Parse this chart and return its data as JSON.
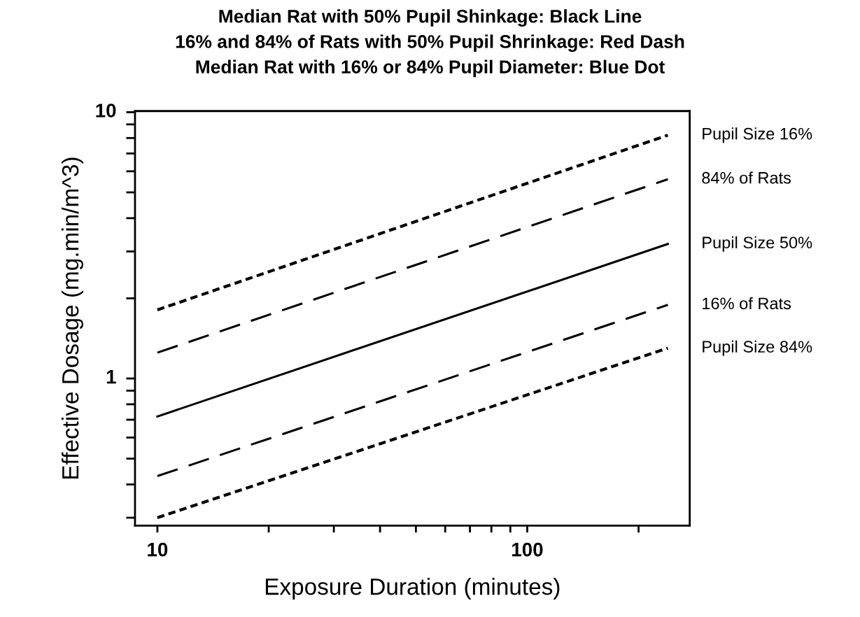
{
  "chart_data": {
    "type": "line",
    "title": "Median Rat with 50% Pupil Shinkage: Black Line\n16% and 84% of Rats with 50% Pupil Shrinkage: Red Dash\nMedian Rat with 16% or 84% Pupil Diameter: Blue Dot",
    "xlabel": "Exposure Duration (minutes)",
    "ylabel": "Effective Dosage (mg.min/m^3)",
    "log": "xy",
    "grid": false,
    "legend": false,
    "marker": "none",
    "x": [
      10,
      240
    ],
    "series": [
      {
        "name": "Pupil Size 16%",
        "color": "#000000",
        "line_style": "dotted",
        "values": [
          1.81,
          8.2
        ]
      },
      {
        "name": "84% of Rats",
        "color": "#000000",
        "line_style": "dashed",
        "values": [
          1.25,
          5.6
        ]
      },
      {
        "name": "Pupil Size 50%",
        "color": "#000000",
        "line_style": "solid",
        "values": [
          0.72,
          3.2
        ]
      },
      {
        "name": "16% of Rats",
        "color": "#000000",
        "line_style": "dashed",
        "values": [
          0.43,
          1.89
        ]
      },
      {
        "name": "Pupil Size 84%",
        "color": "#000000",
        "line_style": "dotted",
        "values": [
          0.3,
          1.3
        ]
      }
    ],
    "xlim": [
      8.7,
      275
    ],
    "ylim": [
      0.28,
      10.1
    ],
    "xticks": [
      10,
      {
        "value": 20,
        "label": null
      },
      {
        "value": 30,
        "label": null
      },
      {
        "value": 40,
        "label": null
      },
      {
        "value": 50,
        "label": null
      },
      {
        "value": 60,
        "label": null
      },
      {
        "value": 70,
        "label": null
      },
      {
        "value": 80,
        "label": null
      },
      {
        "value": 90,
        "label": null
      },
      100,
      {
        "value": 200,
        "label": null
      }
    ],
    "yticks": [
      {
        "value": 0.3,
        "label": null
      },
      {
        "value": 0.4,
        "label": null
      },
      {
        "value": 0.5,
        "label": null
      },
      {
        "value": 0.6,
        "label": null
      },
      {
        "value": 0.7,
        "label": null
      },
      {
        "value": 0.8,
        "label": null
      },
      {
        "value": 0.9,
        "label": null
      },
      1,
      {
        "value": 2,
        "label": null
      },
      {
        "value": 3,
        "label": null
      },
      {
        "value": 4,
        "label": null
      },
      {
        "value": 5,
        "label": null
      },
      {
        "value": 6,
        "label": null
      },
      {
        "value": 7,
        "label": null
      },
      {
        "value": 8,
        "label": null
      },
      {
        "value": 9,
        "label": null
      },
      10
    ]
  }
}
